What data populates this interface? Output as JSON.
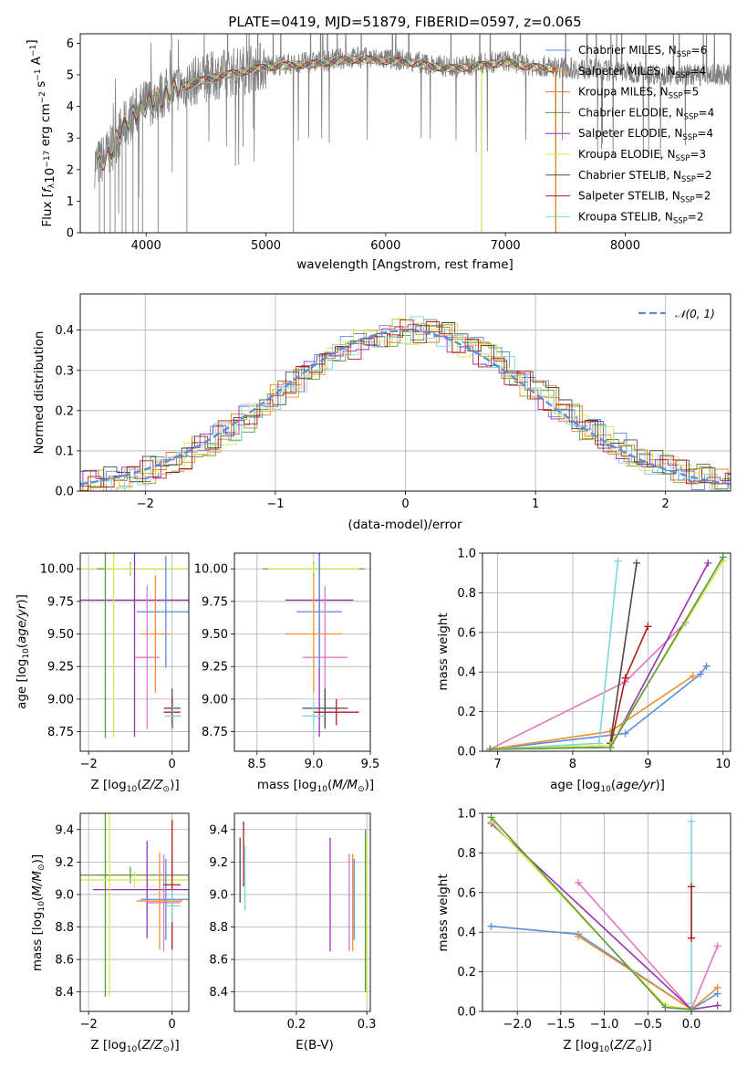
{
  "colors": {
    "chabrier_miles": "#5b8dd9",
    "salpeter_miles": "#f28e2b",
    "kroupa_miles": "#e87a1e",
    "chabrier_elodie": "#5a9a3c",
    "salpeter_elodie": "#9a2fb5",
    "kroupa_elodie": "#d9e84a",
    "chabrier_stelib": "#4a4a4a",
    "salpeter_stelib": "#b01c1c",
    "kroupa_stelib": "#7fd6d6",
    "pink": "#e377c2",
    "data_gray": "#808080",
    "normal_curve": "#5b8dd9",
    "grid": "#b0b0b0"
  },
  "chart_data": [
    {
      "panel": "spectrum",
      "type": "line",
      "title": "PLATE=0419, MJD=51879, FIBERID=0597, z=0.065",
      "xlabel": "wavelength [Angstrom, rest frame]",
      "ylabel": "Flux [f_λ10^-17 erg cm^-2 s^-1 A^-1]",
      "xlim": [
        3450,
        8880
      ],
      "ylim": [
        0,
        6.3
      ],
      "xticks": [
        "4000",
        "5000",
        "6000",
        "7000",
        "8000"
      ],
      "yticks": [
        "0",
        "1",
        "2",
        "3",
        "4",
        "5",
        "6"
      ],
      "grid": false,
      "legend_position": "right",
      "continuum_x": [
        3600,
        3700,
        3800,
        3900,
        4000,
        4100,
        4200,
        4400,
        4600,
        4800,
        5000,
        5200,
        5400,
        5600,
        5800,
        6000,
        6200,
        6400,
        6600,
        6800,
        7000,
        7200,
        7400,
        7600,
        7800,
        8000,
        8200,
        8400
      ],
      "continuum_y": [
        2.2,
        2.6,
        3.3,
        3.8,
        4.1,
        4.3,
        4.5,
        4.8,
        5.0,
        5.15,
        5.3,
        5.35,
        5.4,
        5.5,
        5.55,
        5.5,
        5.45,
        5.3,
        5.25,
        5.35,
        5.45,
        5.3,
        5.25,
        5.2,
        5.15,
        5.1,
        5.05,
        5.0
      ],
      "legend": [
        {
          "pre": "Chabrier MILES, N",
          "n": "6",
          "color_key": "chabrier_miles"
        },
        {
          "pre": "Salpeter MILES, N",
          "n": "4",
          "color_key": "salpeter_miles"
        },
        {
          "pre": "Kroupa MILES, N",
          "n": "5",
          "color_key": "kroupa_miles"
        },
        {
          "pre": "Chabrier ELODIE, N",
          "n": "4",
          "color_key": "chabrier_elodie"
        },
        {
          "pre": "Salpeter ELODIE, N",
          "n": "4",
          "color_key": "salpeter_elodie"
        },
        {
          "pre": "Kroupa ELODIE, N",
          "n": "3",
          "color_key": "kroupa_elodie"
        },
        {
          "pre": "Chabrier STELIB, N",
          "n": "2",
          "color_key": "chabrier_stelib"
        },
        {
          "pre": "Salpeter STELIB, N",
          "n": "2",
          "color_key": "salpeter_stelib"
        },
        {
          "pre": "Kroupa STELIB, N",
          "n": "2",
          "color_key": "kroupa_stelib"
        }
      ],
      "legend_sub": "SSP"
    },
    {
      "panel": "residuals",
      "type": "line",
      "xlabel": "(data-model)/error",
      "ylabel": "Normed distribution",
      "xlim": [
        -2.5,
        2.5
      ],
      "ylim": [
        0,
        0.49
      ],
      "xticks": [
        "−2",
        "−1",
        "0",
        "1",
        "2"
      ],
      "yticks": [
        "0.0",
        "0.1",
        "0.2",
        "0.3",
        "0.4"
      ],
      "grid": true,
      "legend_label": "𝒩(0, 1)",
      "hist_centers": [
        -2.4,
        -2.2,
        -2.0,
        -1.8,
        -1.6,
        -1.4,
        -1.2,
        -1.0,
        -0.8,
        -0.6,
        -0.4,
        -0.2,
        0.0,
        0.2,
        0.4,
        0.6,
        0.8,
        1.0,
        1.2,
        1.4,
        1.6,
        1.8,
        2.0,
        2.2,
        2.4
      ],
      "hist_values": [
        0.03,
        0.04,
        0.05,
        0.08,
        0.11,
        0.15,
        0.2,
        0.25,
        0.3,
        0.35,
        0.4,
        0.42,
        0.4,
        0.41,
        0.37,
        0.33,
        0.29,
        0.24,
        0.19,
        0.15,
        0.11,
        0.08,
        0.06,
        0.04,
        0.03
      ]
    },
    {
      "panel": "age_vs_Z",
      "type": "scatter",
      "xlabel": "Z [log10(Z/Z⊙)]",
      "ylabel": "age  [log10(age/yr)]",
      "xlim": [
        -2.2,
        0.4
      ],
      "ylim": [
        8.6,
        10.12
      ],
      "xticks": [
        "−2",
        "0"
      ],
      "yticks": [
        "8.75",
        "9.00",
        "9.25",
        "9.50",
        "9.75",
        "10.00"
      ],
      "points": [
        {
          "x": -1.0,
          "y": 10.0,
          "xerr": 2.1,
          "yerr": 0.05,
          "c": "chabrier_elodie"
        },
        {
          "x": -1.0,
          "y": 10.0,
          "xerr": 1.7,
          "yerr": 0.04,
          "c": "kroupa_elodie"
        },
        {
          "x": -0.9,
          "y": 9.76,
          "xerr": 1.4,
          "yerr": 1.05,
          "c": "salpeter_elodie"
        },
        {
          "x": -0.15,
          "y": 9.67,
          "xerr": 0.7,
          "yerr": 0.43,
          "c": "chabrier_miles"
        },
        {
          "x": -0.4,
          "y": 9.5,
          "xerr": 0.35,
          "yerr": 0.45,
          "c": "salpeter_miles"
        },
        {
          "x": -0.6,
          "y": 9.32,
          "xerr": 0.3,
          "yerr": 0.55,
          "c": "pink"
        },
        {
          "x": 0.0,
          "y": 8.93,
          "xerr": 0.2,
          "yerr": 0.15,
          "c": "chabrier_stelib"
        },
        {
          "x": 0.0,
          "y": 8.9,
          "xerr": 0.2,
          "yerr": 0.1,
          "c": "salpeter_stelib"
        },
        {
          "x": -1.6,
          "y": 10.0,
          "xerr": 0.2,
          "yerr": 1.3,
          "c": "chabrier_elodie"
        },
        {
          "x": -1.4,
          "y": 10.0,
          "xerr": 0.2,
          "yerr": 1.3,
          "c": "kroupa_elodie"
        },
        {
          "x": 0.02,
          "y": 8.87,
          "xerr": 0.2,
          "yerr": 0.1,
          "c": "kroupa_stelib"
        }
      ]
    },
    {
      "panel": "age_vs_mass",
      "type": "scatter",
      "xlabel": "mass [log10(M/M⊙)]",
      "ylabel": "",
      "xlim": [
        8.3,
        9.5
      ],
      "ylim": [
        8.6,
        10.12
      ],
      "xticks": [
        "8.5",
        "9.0",
        "9.5"
      ],
      "yticks": [
        "8.75",
        "9.00",
        "9.25",
        "9.50",
        "9.75",
        "10.00"
      ],
      "points": [
        {
          "x": 9.0,
          "y": 10.0,
          "xerr": 0.45,
          "yerr": 0.05,
          "c": "chabrier_elodie"
        },
        {
          "x": 9.0,
          "y": 10.0,
          "xerr": 0.4,
          "yerr": 0.04,
          "c": "kroupa_elodie"
        },
        {
          "x": 9.05,
          "y": 9.76,
          "xerr": 0.3,
          "yerr": 1.05,
          "c": "salpeter_elodie"
        },
        {
          "x": 9.05,
          "y": 9.67,
          "xerr": 0.2,
          "yerr": 0.43,
          "c": "chabrier_miles"
        },
        {
          "x": 9.0,
          "y": 9.5,
          "xerr": 0.25,
          "yerr": 0.45,
          "c": "salpeter_miles"
        },
        {
          "x": 9.1,
          "y": 9.32,
          "xerr": 0.2,
          "yerr": 0.55,
          "c": "pink"
        },
        {
          "x": 9.1,
          "y": 8.93,
          "xerr": 0.2,
          "yerr": 0.15,
          "c": "chabrier_stelib"
        },
        {
          "x": 9.2,
          "y": 8.9,
          "xerr": 0.2,
          "yerr": 0.1,
          "c": "salpeter_stelib"
        },
        {
          "x": 9.0,
          "y": 8.87,
          "xerr": 0.1,
          "yerr": 0.1,
          "c": "kroupa_stelib"
        }
      ]
    },
    {
      "panel": "mass_weight_vs_age",
      "type": "line",
      "xlabel": "age  [log10(age/yr)]",
      "ylabel": "mass weight",
      "xlim": [
        6.8,
        10.1
      ],
      "ylim": [
        0,
        1.0
      ],
      "xticks": [
        "7",
        "8",
        "9",
        "10"
      ],
      "yticks": [
        "0.0",
        "0.2",
        "0.4",
        "0.6",
        "0.8",
        "1.0"
      ],
      "grid": true,
      "series": [
        {
          "c": "chabrier_miles",
          "x": [
            6.9,
            8.7,
            9.7,
            9.78
          ],
          "y": [
            0.01,
            0.09,
            0.39,
            0.43
          ]
        },
        {
          "c": "salpeter_miles",
          "x": [
            6.9,
            8.5,
            9.6
          ],
          "y": [
            0.01,
            0.1,
            0.38
          ]
        },
        {
          "c": "pink",
          "x": [
            6.9,
            8.7,
            9.5
          ],
          "y": [
            0.01,
            0.35,
            0.65
          ]
        },
        {
          "c": "kroupa_stelib",
          "x": [
            6.9,
            8.35,
            8.6
          ],
          "y": [
            0.01,
            0.04,
            0.96
          ]
        },
        {
          "c": "chabrier_stelib",
          "x": [
            8.5,
            8.85
          ],
          "y": [
            0.04,
            0.95
          ]
        },
        {
          "c": "salpeter_stelib",
          "x": [
            8.5,
            8.7,
            9.0
          ],
          "y": [
            0.02,
            0.37,
            0.63
          ]
        },
        {
          "c": "salpeter_elodie",
          "x": [
            6.9,
            8.5,
            9.8
          ],
          "y": [
            0.01,
            0.02,
            0.95
          ]
        },
        {
          "c": "kroupa_elodie",
          "x": [
            6.9,
            8.5,
            10.0
          ],
          "y": [
            0.01,
            0.03,
            0.96
          ]
        },
        {
          "c": "chabrier_elodie",
          "x": [
            6.9,
            8.5,
            10.0
          ],
          "y": [
            0.01,
            0.02,
            0.98
          ]
        }
      ]
    },
    {
      "panel": "mass_vs_Z",
      "type": "scatter",
      "xlabel": "Z [log10(Z/Z⊙)]",
      "ylabel": "mass [log10(M/M⊙)]",
      "xlim": [
        -2.2,
        0.4
      ],
      "ylim": [
        8.28,
        9.5
      ],
      "xticks": [
        "−2",
        "0"
      ],
      "yticks": [
        "8.4",
        "8.6",
        "8.8",
        "9.0",
        "9.2",
        "9.4"
      ],
      "points": [
        {
          "x": -1.0,
          "y": 9.12,
          "xerr": 2.1,
          "yerr": 0.05,
          "c": "chabrier_elodie"
        },
        {
          "x": -0.9,
          "y": 9.09,
          "xerr": 1.7,
          "yerr": 0.05,
          "c": "kroupa_elodie"
        },
        {
          "x": -0.6,
          "y": 9.03,
          "xerr": 1.3,
          "yerr": 0.3,
          "c": "salpeter_elodie"
        },
        {
          "x": -0.15,
          "y": 8.97,
          "xerr": 0.6,
          "yerr": 0.25,
          "c": "chabrier_miles"
        },
        {
          "x": -0.3,
          "y": 8.96,
          "xerr": 0.55,
          "yerr": 0.3,
          "c": "salpeter_miles"
        },
        {
          "x": -0.2,
          "y": 8.95,
          "xerr": 0.4,
          "yerr": 0.3,
          "c": "pink"
        },
        {
          "x": 0.0,
          "y": 9.06,
          "xerr": 0.2,
          "yerr": 0.4,
          "c": "salpeter_stelib"
        },
        {
          "x": 0.0,
          "y": 8.93,
          "xerr": 0.2,
          "yerr": 0.1,
          "c": "kroupa_stelib"
        },
        {
          "x": -1.6,
          "y": 9.12,
          "xerr": 0.2,
          "yerr": 0.75,
          "c": "chabrier_elodie"
        },
        {
          "x": -1.5,
          "y": 9.09,
          "xerr": 0.2,
          "yerr": 0.72,
          "c": "kroupa_elodie"
        }
      ]
    },
    {
      "panel": "mass_vs_ebv",
      "type": "scatter",
      "xlabel": "E(B-V)",
      "ylabel": "",
      "xlim": [
        0.112,
        0.305
      ],
      "ylim": [
        8.28,
        9.5
      ],
      "xticks": [
        "0.2",
        "0.3"
      ],
      "yticks": [
        "8.4",
        "8.6",
        "8.8",
        "9.0",
        "9.2",
        "9.4"
      ],
      "points": [
        {
          "x": 0.12,
          "y": 9.15,
          "yerr": 0.2,
          "c": "chabrier_stelib"
        },
        {
          "x": 0.125,
          "y": 9.25,
          "yerr": 0.2,
          "c": "salpeter_stelib"
        },
        {
          "x": 0.127,
          "y": 9.1,
          "yerr": 0.2,
          "c": "kroupa_stelib"
        },
        {
          "x": 0.248,
          "y": 9.0,
          "yerr": 0.35,
          "c": "salpeter_elodie"
        },
        {
          "x": 0.275,
          "y": 8.95,
          "yerr": 0.3,
          "c": "pink"
        },
        {
          "x": 0.28,
          "y": 8.95,
          "yerr": 0.3,
          "c": "salpeter_miles"
        },
        {
          "x": 0.282,
          "y": 8.97,
          "yerr": 0.25,
          "c": "chabrier_miles"
        },
        {
          "x": 0.298,
          "y": 8.9,
          "yerr": 0.5,
          "c": "chabrier_elodie"
        },
        {
          "x": 0.3,
          "y": 8.85,
          "yerr": 0.5,
          "c": "kroupa_elodie"
        }
      ]
    },
    {
      "panel": "mass_weight_vs_Z",
      "type": "line",
      "xlabel": "Z [log10(Z/Z⊙)]",
      "ylabel": "mass weight",
      "xlim": [
        -2.4,
        0.45
      ],
      "ylim": [
        0,
        1.0
      ],
      "xticks": [
        "−2.0",
        "−1.5",
        "−1.0",
        "−0.5",
        "0.0"
      ],
      "yticks": [
        "0.0",
        "0.2",
        "0.4",
        "0.6",
        "0.8",
        "1.0"
      ],
      "grid": true,
      "series": [
        {
          "c": "chabrier_miles",
          "x": [
            -2.3,
            -1.3,
            0.0,
            0.3
          ],
          "y": [
            0.43,
            0.39,
            0.01,
            0.09
          ]
        },
        {
          "c": "salpeter_miles",
          "x": [
            -1.3,
            0.0,
            0.3
          ],
          "y": [
            0.38,
            0.01,
            0.12
          ]
        },
        {
          "c": "pink",
          "x": [
            -1.3,
            0.0,
            0.3
          ],
          "y": [
            0.65,
            0.01,
            0.33
          ]
        },
        {
          "c": "salpeter_elodie",
          "x": [
            -2.3,
            0.0,
            0.3
          ],
          "y": [
            0.95,
            0.01,
            0.03
          ]
        },
        {
          "c": "kroupa_elodie",
          "x": [
            -2.3,
            -0.3,
            0.0
          ],
          "y": [
            0.96,
            0.03,
            0.01
          ]
        },
        {
          "c": "chabrier_elodie",
          "x": [
            -2.3,
            -0.3,
            0.0
          ],
          "y": [
            0.98,
            0.02,
            0.01
          ]
        },
        {
          "c": "kroupa_stelib",
          "x": [
            0.0,
            0.0
          ],
          "y": [
            0.04,
            0.96
          ]
        },
        {
          "c": "salpeter_stelib",
          "x": [
            0.0,
            0.0
          ],
          "y": [
            0.37,
            0.63
          ]
        }
      ]
    }
  ]
}
